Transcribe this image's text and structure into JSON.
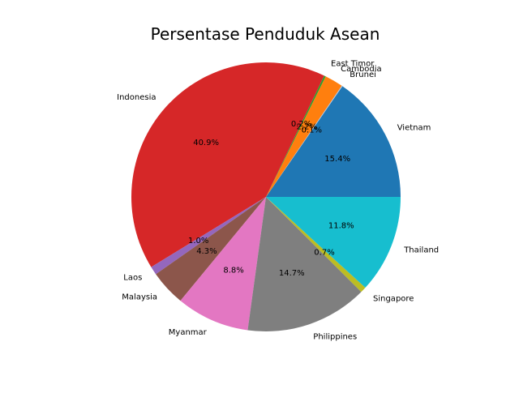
{
  "chart_data": {
    "type": "pie",
    "title": "Persentase Penduduk Asean",
    "start_angle": 0,
    "direction": "counterclockwise",
    "slices": [
      {
        "label": "Vietnam",
        "value": 15.4,
        "value_label": "15.4%",
        "color": "#1f77b4"
      },
      {
        "label": "Brunei",
        "value": 0.1,
        "value_label": "0.1%",
        "color": "#aec7e8"
      },
      {
        "label": "Cambodia",
        "value": 2.2,
        "value_label": "2.2%",
        "color": "#ff7f0e"
      },
      {
        "label": "East Timor",
        "value": 0.2,
        "value_label": "0.2%",
        "color": "#2ca02c"
      },
      {
        "label": "Indonesia",
        "value": 40.9,
        "value_label": "40.9%",
        "color": "#d62728"
      },
      {
        "label": "Laos",
        "value": 1.0,
        "value_label": "1.0%",
        "color": "#9467bd"
      },
      {
        "label": "Malaysia",
        "value": 4.3,
        "value_label": "4.3%",
        "color": "#8c564b"
      },
      {
        "label": "Myanmar",
        "value": 8.8,
        "value_label": "8.8%",
        "color": "#e377c2"
      },
      {
        "label": "Philippines",
        "value": 14.7,
        "value_label": "14.7%",
        "color": "#7f7f7f"
      },
      {
        "label": "Singapore",
        "value": 0.7,
        "value_label": "0.7%",
        "color": "#bcbd22"
      },
      {
        "label": "Thailand",
        "value": 11.8,
        "value_label": "11.8%",
        "color": "#17becf"
      }
    ]
  }
}
